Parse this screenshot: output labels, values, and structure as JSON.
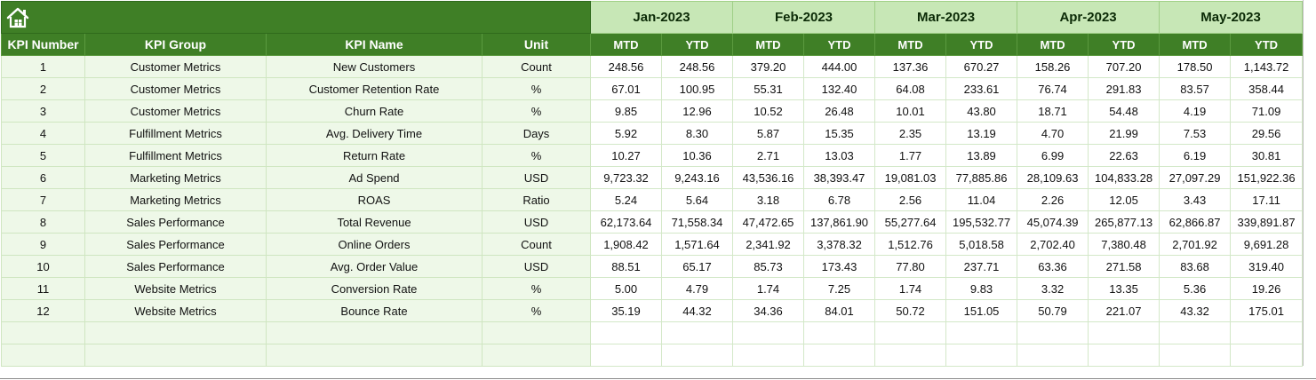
{
  "header": {
    "home_icon": "home-icon",
    "columns": [
      "KPI Number",
      "KPI Group",
      "KPI Name",
      "Unit"
    ],
    "months": [
      "Jan-2023",
      "Feb-2023",
      "Mar-2023",
      "Apr-2023",
      "May-2023"
    ],
    "sub_labels": [
      "MTD",
      "YTD"
    ]
  },
  "colors": {
    "header_green": "#3f7f26",
    "month_bg": "#c7e7b6",
    "left_cell_bg": "#eef8e8"
  },
  "rows": [
    {
      "num": "1",
      "group": "Customer Metrics",
      "name": "New Customers",
      "unit": "Count",
      "values": [
        "248.56",
        "248.56",
        "379.20",
        "444.00",
        "137.36",
        "670.27",
        "158.26",
        "707.20",
        "178.50",
        "1,143.72"
      ]
    },
    {
      "num": "2",
      "group": "Customer Metrics",
      "name": "Customer Retention Rate",
      "unit": "%",
      "values": [
        "67.01",
        "100.95",
        "55.31",
        "132.40",
        "64.08",
        "233.61",
        "76.74",
        "291.83",
        "83.57",
        "358.44"
      ]
    },
    {
      "num": "3",
      "group": "Customer Metrics",
      "name": "Churn Rate",
      "unit": "%",
      "values": [
        "9.85",
        "12.96",
        "10.52",
        "26.48",
        "10.01",
        "43.80",
        "18.71",
        "54.48",
        "4.19",
        "71.09"
      ]
    },
    {
      "num": "4",
      "group": "Fulfillment Metrics",
      "name": "Avg. Delivery Time",
      "unit": "Days",
      "values": [
        "5.92",
        "8.30",
        "5.87",
        "15.35",
        "2.35",
        "13.19",
        "4.70",
        "21.99",
        "7.53",
        "29.56"
      ]
    },
    {
      "num": "5",
      "group": "Fulfillment Metrics",
      "name": "Return Rate",
      "unit": "%",
      "values": [
        "10.27",
        "10.36",
        "2.71",
        "13.03",
        "1.77",
        "13.89",
        "6.99",
        "22.63",
        "6.19",
        "30.81"
      ]
    },
    {
      "num": "6",
      "group": "Marketing Metrics",
      "name": "Ad Spend",
      "unit": "USD",
      "values": [
        "9,723.32",
        "9,243.16",
        "43,536.16",
        "38,393.47",
        "19,081.03",
        "77,885.86",
        "28,109.63",
        "104,833.28",
        "27,097.29",
        "151,922.36"
      ]
    },
    {
      "num": "7",
      "group": "Marketing Metrics",
      "name": "ROAS",
      "unit": "Ratio",
      "values": [
        "5.24",
        "5.64",
        "3.18",
        "6.78",
        "2.56",
        "11.04",
        "2.26",
        "12.05",
        "3.43",
        "17.11"
      ]
    },
    {
      "num": "8",
      "group": "Sales Performance",
      "name": "Total Revenue",
      "unit": "USD",
      "values": [
        "62,173.64",
        "71,558.34",
        "47,472.65",
        "137,861.90",
        "55,277.64",
        "195,532.77",
        "45,074.39",
        "265,877.13",
        "62,866.87",
        "339,891.87"
      ]
    },
    {
      "num": "9",
      "group": "Sales Performance",
      "name": "Online Orders",
      "unit": "Count",
      "values": [
        "1,908.42",
        "1,571.64",
        "2,341.92",
        "3,378.32",
        "1,512.76",
        "5,018.58",
        "2,702.40",
        "7,380.48",
        "2,701.92",
        "9,691.28"
      ]
    },
    {
      "num": "10",
      "group": "Sales Performance",
      "name": "Avg. Order Value",
      "unit": "USD",
      "values": [
        "88.51",
        "65.17",
        "85.73",
        "173.43",
        "77.80",
        "237.71",
        "63.36",
        "271.58",
        "83.68",
        "319.40"
      ]
    },
    {
      "num": "11",
      "group": "Website Metrics",
      "name": "Conversion Rate",
      "unit": "%",
      "values": [
        "5.00",
        "4.79",
        "1.74",
        "7.25",
        "1.74",
        "9.83",
        "3.32",
        "13.35",
        "5.36",
        "19.26"
      ]
    },
    {
      "num": "12",
      "group": "Website Metrics",
      "name": "Bounce Rate",
      "unit": "%",
      "values": [
        "35.19",
        "44.32",
        "34.36",
        "84.01",
        "50.72",
        "151.05",
        "50.79",
        "221.07",
        "43.32",
        "175.01"
      ]
    }
  ],
  "empty_rows": 2
}
